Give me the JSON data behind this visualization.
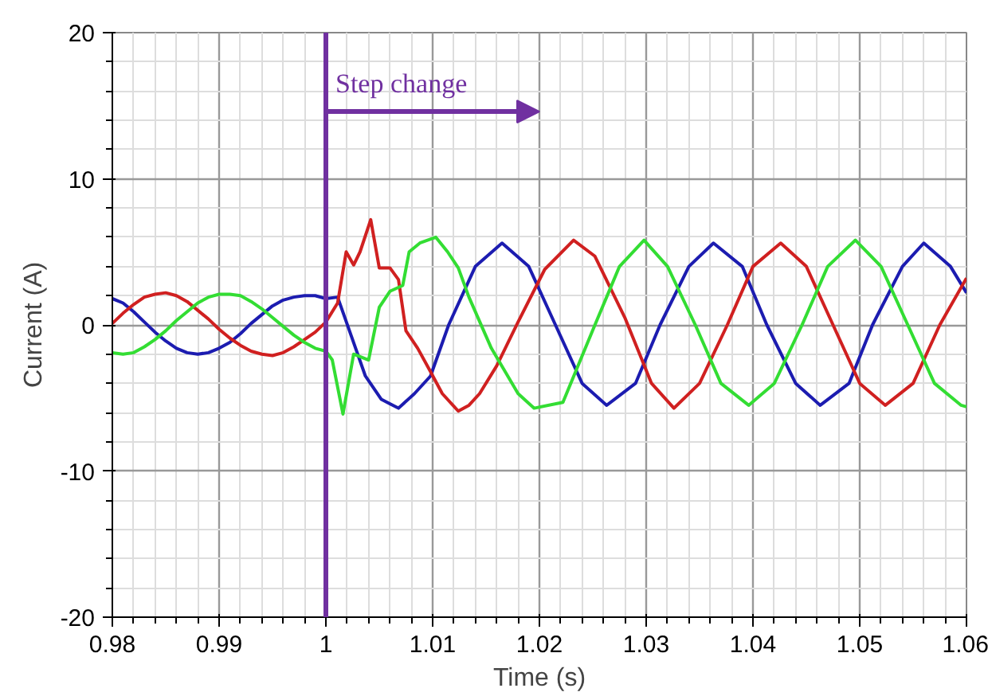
{
  "chart_data": {
    "type": "line",
    "xlabel": "Time (s)",
    "ylabel": "Current (A)",
    "xlim": [
      0.98,
      1.06
    ],
    "ylim": [
      -20,
      20
    ],
    "xticks": [
      0.98,
      {
        "value": 0.982,
        "label": null
      },
      {
        "value": 0.984,
        "label": null
      },
      {
        "value": 0.986,
        "label": null
      },
      {
        "value": 0.988,
        "label": null
      },
      0.99,
      {
        "value": 0.992,
        "label": null
      },
      {
        "value": 0.994,
        "label": null
      },
      {
        "value": 0.996,
        "label": null
      },
      {
        "value": 0.998,
        "label": null
      },
      1,
      {
        "value": 1.002,
        "label": null
      },
      {
        "value": 1.004,
        "label": null
      },
      {
        "value": 1.006,
        "label": null
      },
      {
        "value": 1.008,
        "label": null
      },
      1.01,
      {
        "value": 1.012,
        "label": null
      },
      {
        "value": 1.014,
        "label": null
      },
      {
        "value": 1.016,
        "label": null
      },
      {
        "value": 1.018,
        "label": null
      },
      1.02,
      {
        "value": 1.022,
        "label": null
      },
      {
        "value": 1.024,
        "label": null
      },
      {
        "value": 1.026,
        "label": null
      },
      {
        "value": 1.028,
        "label": null
      },
      1.03,
      {
        "value": 1.032,
        "label": null
      },
      {
        "value": 1.034,
        "label": null
      },
      {
        "value": 1.036,
        "label": null
      },
      {
        "value": 1.038,
        "label": null
      },
      1.04,
      {
        "value": 1.042,
        "label": null
      },
      {
        "value": 1.044,
        "label": null
      },
      {
        "value": 1.046,
        "label": null
      },
      {
        "value": 1.048,
        "label": null
      },
      1.05,
      {
        "value": 1.052,
        "label": null
      },
      {
        "value": 1.054,
        "label": null
      },
      {
        "value": 1.056,
        "label": null
      },
      {
        "value": 1.058,
        "label": null
      },
      1.06
    ],
    "yticks": [
      -20,
      {
        "value": -18,
        "label": null
      },
      {
        "value": -16,
        "label": null
      },
      {
        "value": -14,
        "label": null
      },
      {
        "value": -12,
        "label": null
      },
      -10,
      {
        "value": -8,
        "label": null
      },
      {
        "value": -6,
        "label": null
      },
      {
        "value": -4,
        "label": null
      },
      {
        "value": -2,
        "label": null
      },
      0,
      {
        "value": 2,
        "label": null
      },
      {
        "value": 4,
        "label": null
      },
      {
        "value": 6,
        "label": null
      },
      {
        "value": 8,
        "label": null
      },
      10,
      {
        "value": 12,
        "label": null
      },
      {
        "value": 14,
        "label": null
      },
      {
        "value": 16,
        "label": null
      },
      {
        "value": 18,
        "label": null
      },
      20
    ],
    "grid": true,
    "line_style": "solid",
    "ref_lines": [
      {
        "axis": "x",
        "value": 1,
        "color": "#7030a0"
      }
    ],
    "annotations": [
      {
        "text": "Step change",
        "x": 1,
        "y": 14.6
      }
    ],
    "series": [
      {
        "color": "#1c1cb0",
        "x": [
          0.98,
          0.981,
          0.982,
          0.983,
          0.984,
          0.985,
          0.986,
          0.987,
          0.988,
          0.989,
          0.99,
          0.991,
          0.992,
          0.993,
          0.994,
          0.995,
          0.996,
          0.997,
          0.998,
          0.999,
          1.0,
          1.0011,
          1.0024,
          1.0037,
          1.0052,
          1.0068,
          1.0083,
          1.0098,
          1.0115,
          1.014,
          1.0165,
          1.019,
          1.0215,
          1.024,
          1.0263,
          1.029,
          1.0313,
          1.034,
          1.0363,
          1.039,
          1.0413,
          1.044,
          1.0463,
          1.049,
          1.0512,
          1.054,
          1.056,
          1.0585,
          1.06
        ],
        "values": [
          1.8,
          1.5,
          0.9,
          0.2,
          -0.5,
          -1.1,
          -1.6,
          -1.9,
          -2.0,
          -1.9,
          -1.6,
          -1.2,
          -0.6,
          0.1,
          0.7,
          1.3,
          1.7,
          1.9,
          2.0,
          2.0,
          1.8,
          1.9,
          -0.8,
          -3.5,
          -5.1,
          -5.7,
          -4.7,
          -3.5,
          0.0,
          4.0,
          5.6,
          4.0,
          0.0,
          -4.0,
          -5.5,
          -4.0,
          0.0,
          4.0,
          5.6,
          4.0,
          0.0,
          -4.0,
          -5.5,
          -4.0,
          0.0,
          4.0,
          5.6,
          4.0,
          2.2
        ]
      },
      {
        "color": "#d02020",
        "x": [
          0.98,
          0.981,
          0.982,
          0.983,
          0.984,
          0.985,
          0.986,
          0.987,
          0.988,
          0.989,
          0.99,
          0.991,
          0.992,
          0.993,
          0.994,
          0.995,
          0.996,
          0.997,
          0.998,
          0.999,
          1.0,
          1.0011,
          1.0019,
          1.0026,
          1.0032,
          1.0042,
          1.005,
          1.006,
          1.0068,
          1.0075,
          1.0086,
          1.0098,
          1.0109,
          1.0124,
          1.0134,
          1.0144,
          1.016,
          1.018,
          1.0205,
          1.0232,
          1.0252,
          1.028,
          1.0305,
          1.0326,
          1.035,
          1.0376,
          1.04,
          1.0426,
          1.045,
          1.0475,
          1.05,
          1.0524,
          1.055,
          1.0575,
          1.06
        ],
        "values": [
          0.1,
          0.8,
          1.4,
          1.9,
          2.1,
          2.2,
          2.0,
          1.6,
          1.0,
          0.4,
          -0.3,
          -0.9,
          -1.4,
          -1.8,
          -2.0,
          -2.1,
          -1.9,
          -1.5,
          -1.0,
          -0.5,
          0.2,
          1.5,
          5.0,
          4.1,
          5.0,
          7.2,
          3.9,
          3.9,
          3.1,
          -0.4,
          -1.6,
          -3.2,
          -4.7,
          -5.9,
          -5.5,
          -4.7,
          -2.8,
          0.2,
          3.8,
          5.8,
          4.7,
          0.5,
          -4.0,
          -5.7,
          -4.0,
          0.0,
          4.0,
          5.6,
          4.0,
          0.0,
          -4.0,
          -5.5,
          -4.0,
          0.0,
          3.2
        ]
      },
      {
        "color": "#33dd33",
        "x": [
          0.98,
          0.981,
          0.982,
          0.983,
          0.984,
          0.985,
          0.986,
          0.987,
          0.988,
          0.989,
          0.99,
          0.991,
          0.992,
          0.993,
          0.994,
          0.995,
          0.996,
          0.997,
          0.998,
          0.999,
          1.0,
          1.0006,
          1.0016,
          1.0026,
          1.004,
          1.005,
          1.006,
          1.0072,
          1.0078,
          1.0088,
          1.0103,
          1.0114,
          1.0124,
          1.0134,
          1.0155,
          1.018,
          1.0195,
          1.0222,
          1.0252,
          1.0275,
          1.0298,
          1.032,
          1.0346,
          1.037,
          1.0396,
          1.042,
          1.0446,
          1.047,
          1.0496,
          1.052,
          1.0545,
          1.057,
          1.0595,
          1.06
        ],
        "values": [
          -1.9,
          -2.0,
          -1.9,
          -1.5,
          -1.0,
          -0.4,
          0.3,
          0.9,
          1.5,
          1.9,
          2.1,
          2.1,
          2.0,
          1.6,
          1.1,
          0.5,
          -0.1,
          -0.7,
          -1.2,
          -1.6,
          -1.8,
          -2.4,
          -6.1,
          -2.0,
          -2.4,
          1.2,
          2.3,
          2.7,
          5.0,
          5.6,
          6.0,
          5.0,
          3.9,
          1.9,
          -1.6,
          -4.7,
          -5.7,
          -5.3,
          0.0,
          4.0,
          5.8,
          4.0,
          0.0,
          -4.0,
          -5.5,
          -4.0,
          0.0,
          4.0,
          5.8,
          4.0,
          0.0,
          -4.0,
          -5.5,
          -5.6
        ]
      }
    ]
  }
}
